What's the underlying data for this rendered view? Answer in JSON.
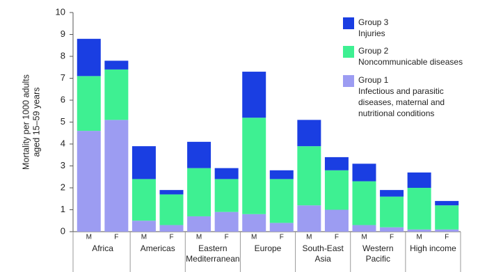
{
  "chart_data": {
    "type": "stacked_bar",
    "ylabel": [
      "Mortality per 1000 adults",
      "aged 15–59 years"
    ],
    "categories": [
      "M",
      "F",
      "M",
      "F",
      "M",
      "F",
      "M",
      "F",
      "M",
      "F",
      "M",
      "F",
      "M",
      "F"
    ],
    "groups": [
      [
        "Africa"
      ],
      [
        "Americas"
      ],
      [
        "Eastern",
        "Mediterranean"
      ],
      [
        "Europe"
      ],
      [
        "South-East",
        "Asia"
      ],
      [
        "Western",
        "Pacific"
      ],
      [
        "High income"
      ]
    ],
    "series": [
      {
        "name": "Group 1",
        "description": [
          "Infectious and parasitic",
          "diseases, maternal and",
          "nutritional conditions"
        ],
        "color": "#9c9cf2",
        "values": [
          4.6,
          5.1,
          0.5,
          0.3,
          0.7,
          0.9,
          0.8,
          0.4,
          1.2,
          1.0,
          0.3,
          0.2,
          0.1,
          0.1
        ]
      },
      {
        "name": "Group 2",
        "description": [
          "Noncommunicable diseases"
        ],
        "color": "#3ef092",
        "values": [
          2.5,
          2.3,
          1.9,
          1.4,
          2.2,
          1.5,
          4.4,
          2.0,
          2.7,
          1.8,
          2.0,
          1.4,
          1.9,
          1.1
        ]
      },
      {
        "name": "Group 3",
        "description": [
          "Injuries"
        ],
        "color": "#1a3ee2",
        "values": [
          1.7,
          0.4,
          1.5,
          0.2,
          1.2,
          0.5,
          2.1,
          0.4,
          1.2,
          0.6,
          0.8,
          0.3,
          0.7,
          0.2
        ]
      }
    ],
    "ylim": [
      0,
      10
    ],
    "yticks": [
      0,
      1,
      2,
      3,
      4,
      5,
      6,
      7,
      8,
      9,
      10
    ],
    "grid": false,
    "legend": "top-right"
  }
}
